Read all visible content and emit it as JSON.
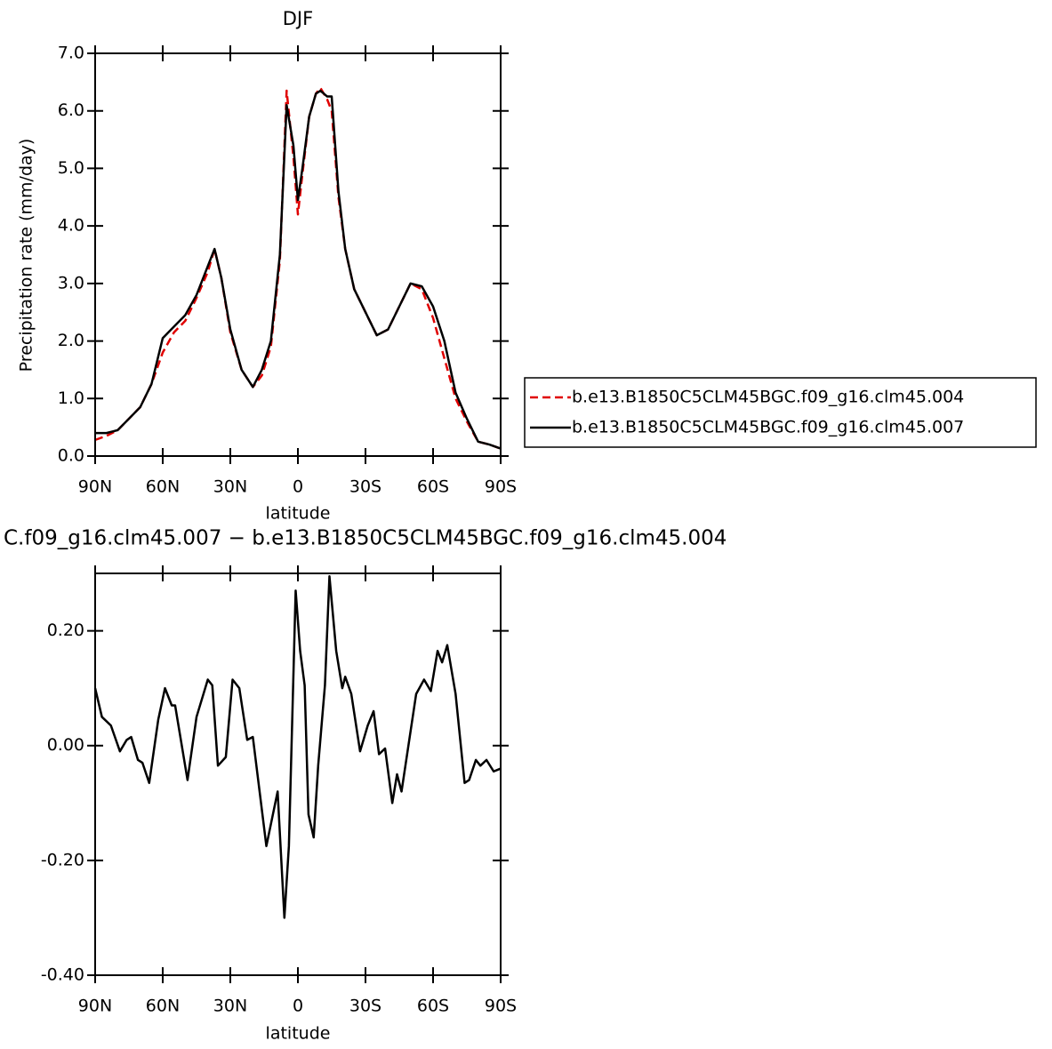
{
  "chart_data": [
    {
      "type": "line",
      "title": "DJF",
      "xlabel": "latitude",
      "ylabel": "Precipitation rate (mm/day)",
      "x": [
        90,
        85,
        80,
        75,
        70,
        65,
        60,
        55,
        50,
        45,
        40,
        37,
        34,
        30,
        25,
        20,
        16,
        12,
        8,
        5,
        2,
        0,
        -2,
        -5,
        -8,
        -10,
        -13,
        -15,
        -18,
        -21,
        -25,
        -30,
        -35,
        -40,
        -45,
        -50,
        -55,
        -60,
        -65,
        -70,
        -75,
        -80,
        -85,
        -90
      ],
      "series": [
        {
          "name": "b.e13.B1850C5CLM45BGC.f09_g16.clm45.004",
          "color": "#e00000",
          "dashed": true,
          "values": [
            0.28,
            0.35,
            0.45,
            0.65,
            0.85,
            1.25,
            1.8,
            2.15,
            2.35,
            2.75,
            3.2,
            3.6,
            3.1,
            2.15,
            1.5,
            1.2,
            1.4,
            1.9,
            3.4,
            6.35,
            5.2,
            4.2,
            4.9,
            5.9,
            6.3,
            6.4,
            6.2,
            6.0,
            4.5,
            3.6,
            2.9,
            2.5,
            2.1,
            2.2,
            2.6,
            3.0,
            2.9,
            2.4,
            1.7,
            1.0,
            0.6,
            0.25,
            0.2,
            0.13
          ]
        },
        {
          "name": "b.e13.B1850C5CLM45BGC.f09_g16.clm45.007",
          "color": "#000000",
          "dashed": false,
          "values": [
            0.4,
            0.4,
            0.45,
            0.65,
            0.85,
            1.25,
            2.05,
            2.25,
            2.45,
            2.8,
            3.3,
            3.6,
            3.1,
            2.2,
            1.5,
            1.2,
            1.5,
            2.0,
            3.5,
            6.1,
            5.4,
            4.45,
            5.0,
            5.9,
            6.3,
            6.35,
            6.25,
            6.25,
            4.6,
            3.6,
            2.9,
            2.5,
            2.1,
            2.2,
            2.6,
            3.0,
            2.95,
            2.6,
            2.0,
            1.1,
            0.65,
            0.25,
            0.2,
            0.13
          ]
        }
      ],
      "legend": "right",
      "xlim": [
        90,
        -90
      ],
      "xticks": [
        {
          "value": 90,
          "label": "90N"
        },
        {
          "value": 60,
          "label": "60N"
        },
        {
          "value": 30,
          "label": "30N"
        },
        0,
        {
          "value": -30,
          "label": "30S"
        },
        {
          "value": -60,
          "label": "60S"
        },
        {
          "value": -90,
          "label": "90S"
        }
      ],
      "ylim": [
        0,
        7
      ],
      "yticks": [
        {
          "value": 0,
          "label": "0.0"
        },
        {
          "value": 1,
          "label": "1.0"
        },
        {
          "value": 2,
          "label": "2.0"
        },
        {
          "value": 3,
          "label": "3.0"
        },
        {
          "value": 4,
          "label": "4.0"
        },
        {
          "value": 5,
          "label": "5.0"
        },
        {
          "value": 6,
          "label": "6.0"
        },
        {
          "value": 7,
          "label": "7.0"
        }
      ]
    },
    {
      "type": "line",
      "title": "C.f09_g16.clm45.007 − b.e13.B1850C5CLM45BGC.f09_g16.clm45.004",
      "xlabel": "latitude",
      "x": [
        90,
        87,
        83,
        79,
        76,
        74,
        71,
        69,
        66,
        62,
        59,
        56,
        54.5,
        49,
        45,
        40,
        38,
        35.5,
        32,
        29,
        26,
        22.5,
        20,
        14,
        9,
        6,
        4,
        1,
        -1,
        -3,
        -4.7,
        -7,
        -9,
        -12,
        -14,
        -17,
        -19.7,
        -21,
        -23.7,
        -27.6,
        -31,
        -33.6,
        -36,
        -38.7,
        -41.9,
        -44,
        -46,
        -52.5,
        -56,
        -59,
        -62,
        -64,
        -66.3,
        -70,
        -74,
        -76,
        -79,
        -81,
        -83.7,
        -86.9,
        -90
      ],
      "series": [
        {
          "name": null,
          "color": "#000000",
          "values": [
            0.1,
            0.05,
            0.035,
            -0.01,
            0.01,
            0.015,
            -0.025,
            -0.03,
            -0.065,
            0.045,
            0.1,
            0.07,
            0.07,
            -0.06,
            0.05,
            0.115,
            0.105,
            -0.035,
            -0.02,
            0.115,
            0.1,
            0.01,
            0.015,
            -0.175,
            -0.08,
            -0.3,
            -0.175,
            0.27,
            0.165,
            0.105,
            -0.12,
            -0.16,
            -0.035,
            0.105,
            0.295,
            0.165,
            0.1,
            0.12,
            0.09,
            -0.01,
            0.035,
            0.06,
            -0.015,
            -0.005,
            -0.1,
            -0.05,
            -0.08,
            0.09,
            0.115,
            0.095,
            0.165,
            0.145,
            0.175,
            0.09,
            -0.065,
            -0.06,
            -0.025,
            -0.035,
            -0.025,
            -0.045,
            -0.04
          ]
        }
      ],
      "xlim": [
        90,
        -90
      ],
      "xticks": [
        {
          "value": 90,
          "label": "90N"
        },
        {
          "value": 60,
          "label": "60N"
        },
        {
          "value": 30,
          "label": "30N"
        },
        0,
        {
          "value": -30,
          "label": "30S"
        },
        {
          "value": -60,
          "label": "60S"
        },
        {
          "value": -90,
          "label": "90S"
        }
      ],
      "ylim": [
        -0.4,
        0.3
      ],
      "yticks": [
        {
          "value": -0.4,
          "label": "-0.40"
        },
        {
          "value": -0.2,
          "label": "-0.20"
        },
        {
          "value": 0,
          "label": "0.00"
        },
        {
          "value": 0.2,
          "label": "0.20"
        }
      ]
    }
  ]
}
